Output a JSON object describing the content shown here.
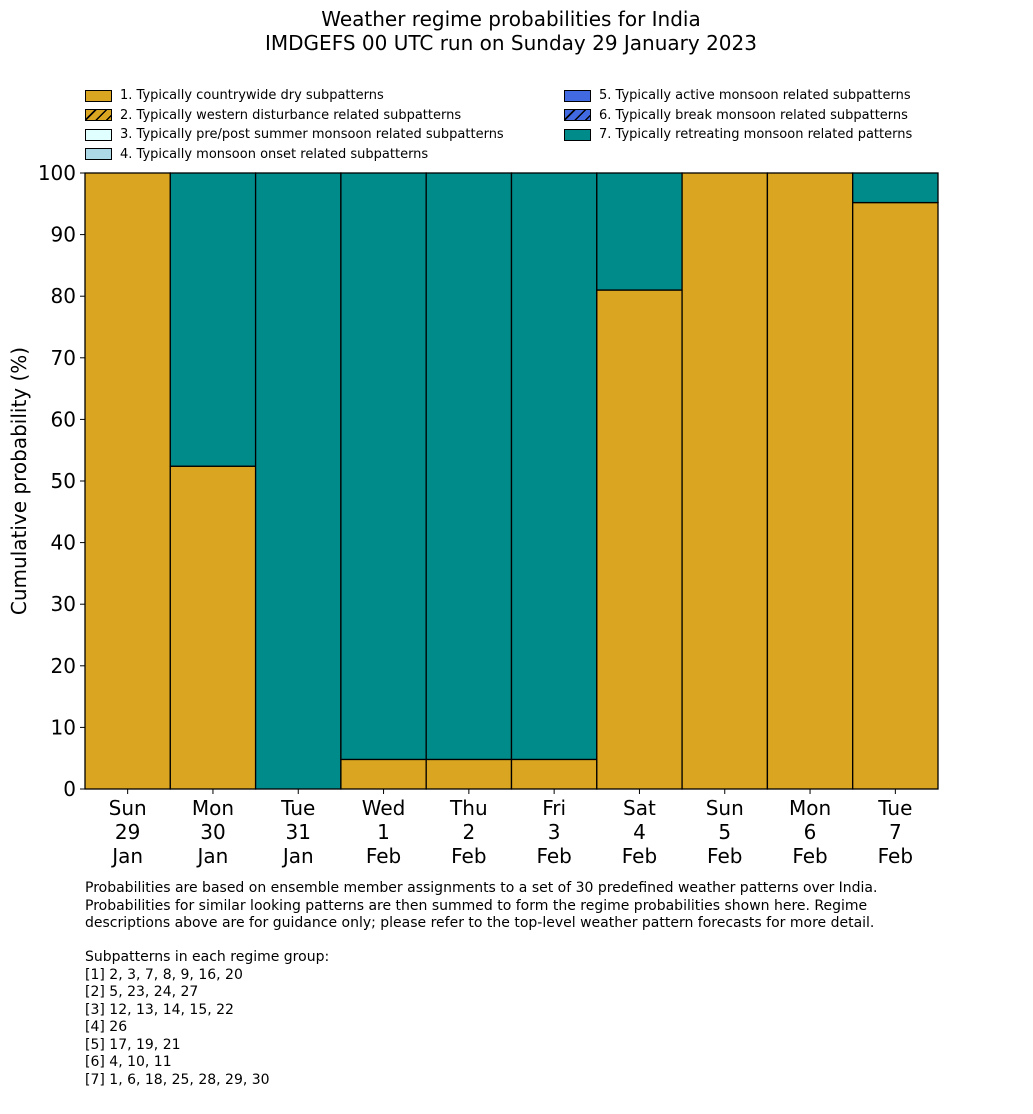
{
  "title_line1": "Weather regime probabilities for India",
  "title_line2": "IMDGEFS 00 UTC run on Sunday 29 January 2023",
  "legend": [
    {
      "label": "1. Typically countrywide dry subpatterns",
      "color": "#DAA520",
      "hatch": false
    },
    {
      "label": "2. Typically western disturbance related subpatterns",
      "color": "#DAA520",
      "hatch": true
    },
    {
      "label": "3. Typically pre/post summer monsoon related subpatterns",
      "color": "#E0FFFF",
      "hatch": false
    },
    {
      "label": "4. Typically monsoon onset related subpatterns",
      "color": "#ADD8E6",
      "hatch": false
    },
    {
      "label": "5. Typically active monsoon related subpatterns",
      "color": "#4169E1",
      "hatch": false
    },
    {
      "label": "6. Typically break monsoon related subpatterns",
      "color": "#4169E1",
      "hatch": true
    },
    {
      "label": "7. Typically retreating monsoon related patterns",
      "color": "#008B8B",
      "hatch": false
    }
  ],
  "chart_data": {
    "type": "bar",
    "stacked": true,
    "ylabel": "Cumulative probability (%)",
    "ylim": [
      0,
      100
    ],
    "yticks": [
      0,
      10,
      20,
      30,
      40,
      50,
      60,
      70,
      80,
      90,
      100
    ],
    "categories": [
      [
        "Sun",
        "29",
        "Jan"
      ],
      [
        "Mon",
        "30",
        "Jan"
      ],
      [
        "Tue",
        "31",
        "Jan"
      ],
      [
        "Wed",
        "1",
        "Feb"
      ],
      [
        "Thu",
        "2",
        "Feb"
      ],
      [
        "Fri",
        "3",
        "Feb"
      ],
      [
        "Sat",
        "4",
        "Feb"
      ],
      [
        "Sun",
        "5",
        "Feb"
      ],
      [
        "Mon",
        "6",
        "Feb"
      ],
      [
        "Tue",
        "7",
        "Feb"
      ]
    ],
    "series": [
      {
        "name": "1. Typically countrywide dry subpatterns",
        "color": "#DAA520",
        "values": [
          100,
          52.4,
          0,
          4.8,
          4.8,
          4.8,
          81.0,
          100,
          100,
          95.2
        ]
      },
      {
        "name": "7. Typically retreating monsoon related patterns",
        "color": "#008B8B",
        "values": [
          0,
          47.6,
          100,
          95.2,
          95.2,
          95.2,
          19.0,
          0,
          0,
          4.8
        ]
      }
    ]
  },
  "notes": [
    "Probabilities are based on ensemble member assignments to a set of 30 predefined weather patterns over India.",
    "Probabilities for similar looking patterns are then summed to form the regime probabilities shown here. Regime",
    "descriptions above are for guidance only; please refer to the top-level weather pattern forecasts for more detail."
  ],
  "groups_heading": "Subpatterns in each regime group:",
  "groups": [
    "[1] 2, 3, 7, 8, 9, 16, 20",
    "[2] 5, 23, 24, 27",
    "[3] 12, 13, 14, 15, 22",
    "[4] 26",
    "[5] 17, 19, 21",
    "[6] 4, 10, 11",
    "[7] 1, 6, 18, 25, 28, 29, 30"
  ]
}
